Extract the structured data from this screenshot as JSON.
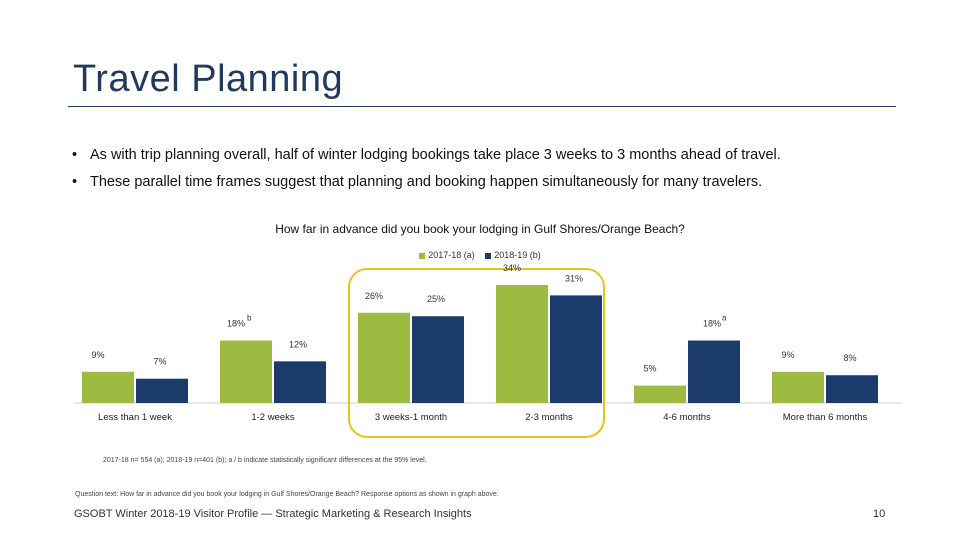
{
  "slide": {
    "title": "Travel Planning",
    "bullets": [
      "As with trip planning overall, half of winter lodging bookings take place 3 weeks to 3 months ahead of travel.",
      "These parallel time frames suggest that planning and booking happen simultaneously for many travelers."
    ],
    "bullet_symbol": "•",
    "footnote": "2017-18 n= 554 (a); 2018-19 n=401 (b); a / b indicate statistically significant differences at the 95% level.",
    "question_text": "Question text: How far in advance did you book your lodging in Gulf Shores/Orange Beach? Response options as shown in graph above.",
    "footer_left": "GSOBT Winter 2018-19 Visitor Profile — Strategic Marketing & Research Insights",
    "page_number": "10"
  },
  "chart_data": {
    "type": "bar",
    "title": "How far in advance did you book your lodging in Gulf Shores/Orange Beach?",
    "categories": [
      "Less than 1 week",
      "1-2 weeks",
      "3 weeks-1 month",
      "2-3 months",
      "4-6 months",
      "More than 6 months"
    ],
    "series": [
      {
        "name": "2017-18 (a)",
        "values": [
          9,
          18,
          26,
          34,
          5,
          9
        ],
        "labels": [
          "9%",
          "18%",
          "26%",
          "34%",
          "5%",
          "9%"
        ],
        "color": "#9dbb40"
      },
      {
        "name": "2018-19 (b)",
        "values": [
          7,
          12,
          25,
          31,
          18,
          8
        ],
        "labels": [
          "7%",
          "12%",
          "25%",
          "31%",
          "18%",
          "8%"
        ],
        "color": "#1b3c6b"
      }
    ],
    "significance_marks": [
      {
        "series": 0,
        "category": 1,
        "mark": "b"
      },
      {
        "series": 1,
        "category": 4,
        "mark": "a"
      }
    ],
    "highlight": {
      "categories": [
        "3 weeks-1 month",
        "2-3 months"
      ],
      "color": "#e8c319"
    },
    "ylim": [
      0,
      34
    ],
    "legend_position": "top-center",
    "grid": false
  }
}
